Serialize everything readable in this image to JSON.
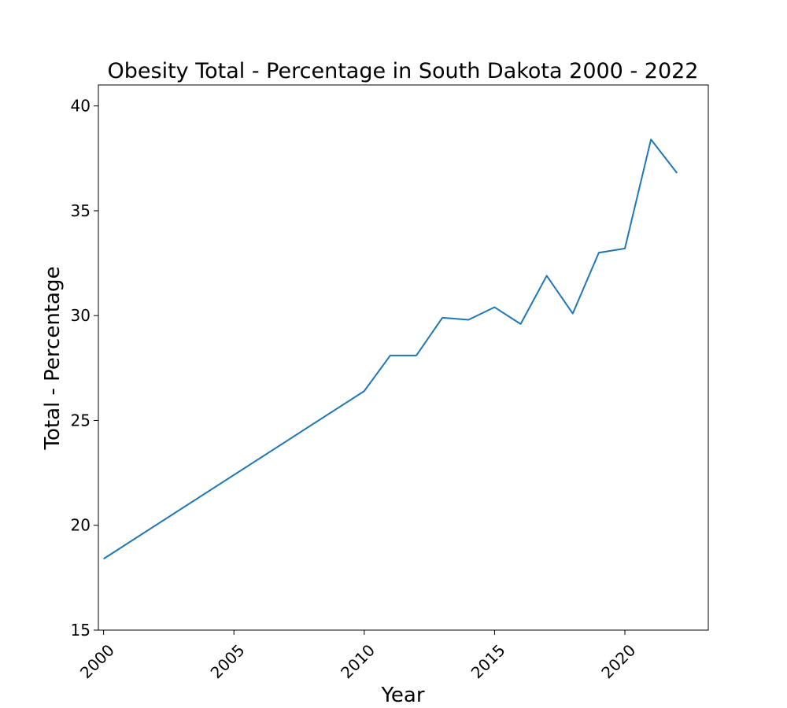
{
  "chart_data": {
    "type": "line",
    "title": "Obesity Total - Percentage in South Dakota 2000 - 2022",
    "xlabel": "Year",
    "ylabel": "Total - Percentage",
    "xlim": [
      1999.8,
      2023.2
    ],
    "ylim": [
      15,
      41
    ],
    "x_ticks": [
      2000,
      2005,
      2010,
      2015,
      2020
    ],
    "y_ticks": [
      15,
      20,
      25,
      30,
      35,
      40
    ],
    "grid": false,
    "series": [
      {
        "color": "#1f77b4",
        "x": [
          2000,
          2010,
          2011,
          2012,
          2013,
          2014,
          2015,
          2016,
          2017,
          2018,
          2019,
          2020,
          2021,
          2022
        ],
        "y": [
          18.4,
          26.4,
          28.1,
          28.1,
          29.9,
          29.8,
          30.4,
          29.6,
          31.9,
          30.1,
          33.0,
          33.2,
          38.4,
          36.8
        ]
      }
    ]
  }
}
